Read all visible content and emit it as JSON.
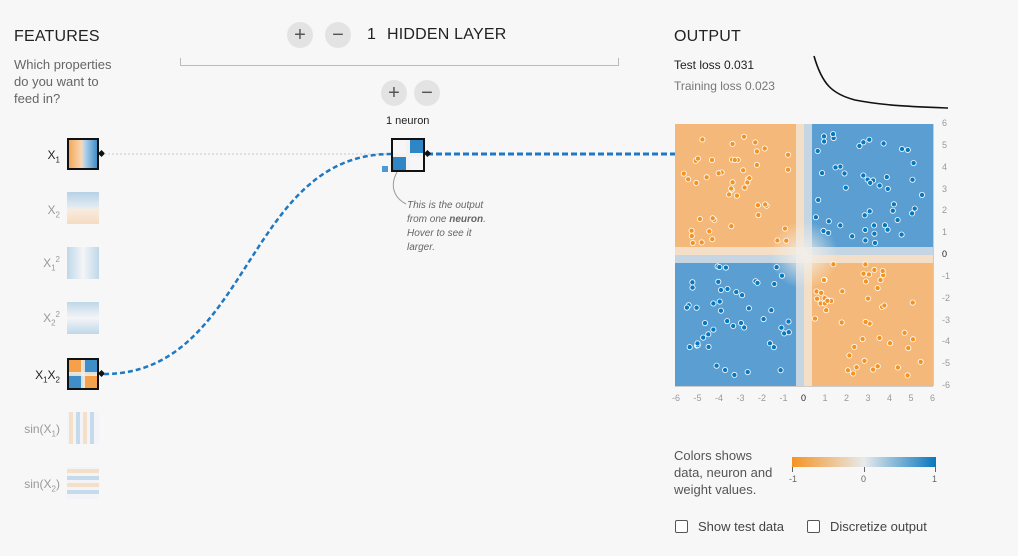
{
  "features": {
    "title": "FEATURES",
    "subtitle_lines": [
      "Which properties",
      "do you want to",
      "feed in?"
    ],
    "items": [
      {
        "base": "X",
        "sub1": "1",
        "active": true
      },
      {
        "base": "X",
        "sub1": "2",
        "active": false
      },
      {
        "base": "X",
        "sub1": "1",
        "sup": "2",
        "active": false
      },
      {
        "base": "X",
        "sub1": "2",
        "sup": "2",
        "active": false
      },
      {
        "base": "X",
        "sub1": "1",
        "base2": "X",
        "sub2": "2",
        "active": true
      },
      {
        "base": "sin(X",
        "sub1": "1",
        "close": ")",
        "active": false
      },
      {
        "base": "sin(X",
        "sub1": "2",
        "close": ")",
        "active": false
      }
    ]
  },
  "hidden": {
    "add_label": "+",
    "remove_label": "−",
    "count": "1",
    "title": "HIDDEN LAYER",
    "neuron_add": "+",
    "neuron_remove": "−",
    "neuron_count_label": "1 neuron",
    "callout_lines": [
      "This is the output",
      "from one ",
      "neuron",
      ".",
      "Hover to see it",
      "larger."
    ]
  },
  "output": {
    "title": "OUTPUT",
    "test_loss_label": "Test loss",
    "test_loss_value": "0.031",
    "training_loss_label": "Training loss",
    "training_loss_value": "0.023",
    "x_ticks": [
      "-6",
      "-5",
      "-4",
      "-3",
      "-2",
      "-1",
      "0",
      "1",
      "2",
      "3",
      "4",
      "5",
      "6"
    ],
    "y_ticks": [
      "6",
      "5",
      "4",
      "3",
      "2",
      "1",
      "0",
      "-1",
      "-2",
      "-3",
      "-4",
      "-5",
      "-6"
    ]
  },
  "legend": {
    "lines": [
      "Colors shows",
      "data, neuron and",
      "weight values."
    ],
    "tick_min": "-1",
    "tick_mid": "0",
    "tick_max": "1",
    "orange": "#f59322",
    "blue": "#0877bd"
  },
  "controls": {
    "show_test_label": "Show test data",
    "discretize_label": "Discretize output"
  }
}
